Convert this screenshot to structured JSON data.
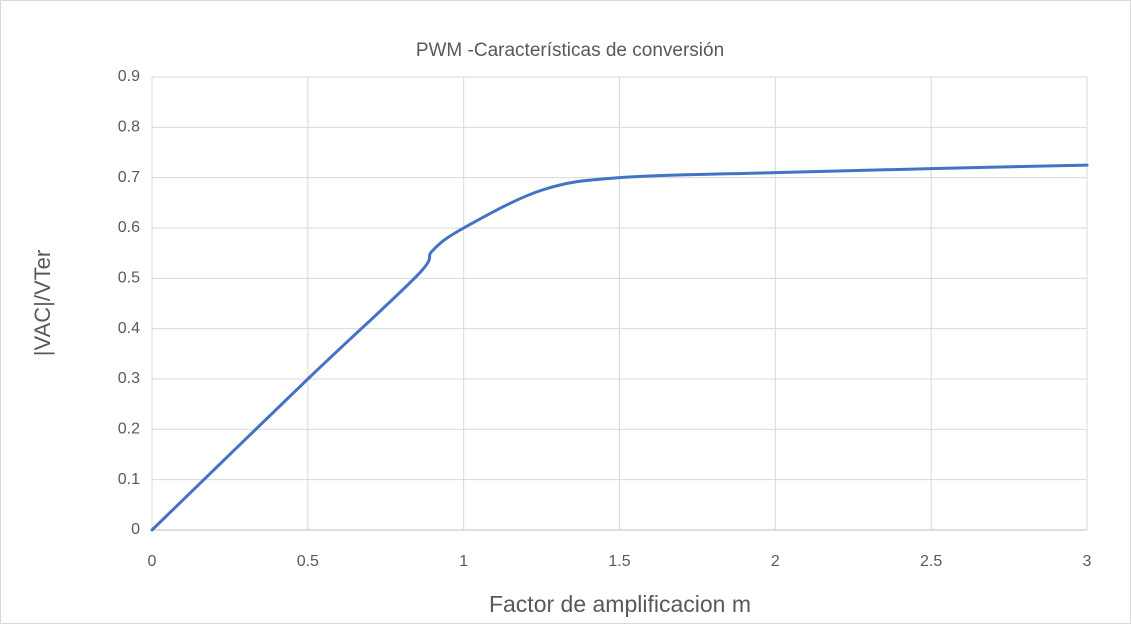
{
  "chart_data": {
    "type": "line",
    "title": "PWM -Características de conversión",
    "x_label": "Factor de amplificacion m",
    "y_label": "|VAC|/VTer",
    "x": [
      0,
      0.5,
      0.85,
      0.9,
      1,
      1.25,
      1.5,
      2,
      2.5,
      3
    ],
    "series": [
      {
        "name": "|VAC|/VTer",
        "color": "#4472c4",
        "values": [
          0,
          0.3,
          0.505,
          0.555,
          0.6,
          0.675,
          0.7,
          0.71,
          0.718,
          0.725
        ]
      }
    ],
    "xlim": [
      0,
      3
    ],
    "xticks": [
      0,
      0.5,
      1,
      1.5,
      2,
      2.5,
      3
    ],
    "ylim": [
      0,
      0.9
    ],
    "yticks": [
      0,
      0.1,
      0.2,
      0.3,
      0.4,
      0.5,
      0.6,
      0.7,
      0.8,
      0.9
    ],
    "grid": true,
    "smooth": true
  }
}
